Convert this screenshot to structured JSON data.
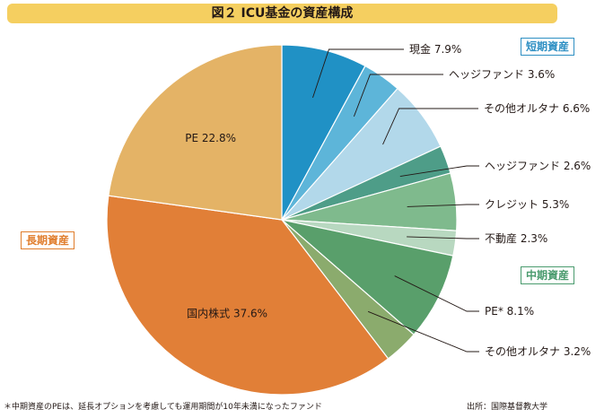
{
  "title": "図２ ICU基金の資産構成",
  "groups": {
    "short": {
      "label": "短期資産",
      "color": "#2e8fc3"
    },
    "mid": {
      "label": "中期資産",
      "color": "#4a9b6e"
    },
    "long": {
      "label": "長期資産",
      "color": "#e07d2c"
    }
  },
  "footnote": "＊中期資産のPEは、延長オプションを考慮しても運用期間が10年未満になったファンド",
  "source": "出所：国際基督教大学",
  "chart_data": {
    "type": "pie",
    "start": "top",
    "direction": "clockwise",
    "slices": [
      {
        "label": "現金",
        "value": 7.9,
        "value_text": "7.9%",
        "group": "short",
        "color": "#2091c5"
      },
      {
        "label": "ヘッジファンド",
        "value": 3.6,
        "value_text": "3.6%",
        "group": "short",
        "color": "#5db5d9"
      },
      {
        "label": "その他オルタナ",
        "value": 6.6,
        "value_text": "6.6%",
        "group": "short",
        "color": "#b2d8ea"
      },
      {
        "label": "ヘッジファンド",
        "value": 2.6,
        "value_text": "2.6%",
        "group": "mid",
        "color": "#4e9d88"
      },
      {
        "label": "クレジット",
        "value": 5.3,
        "value_text": "5.3%",
        "group": "mid",
        "color": "#7fba8d"
      },
      {
        "label": "不動産",
        "value": 2.3,
        "value_text": "2.3%",
        "group": "mid",
        "color": "#b8d8c0"
      },
      {
        "label": "PE*",
        "value": 8.1,
        "value_text": "8.1%",
        "group": "mid",
        "color": "#599f6b"
      },
      {
        "label": "その他オルタナ",
        "value": 3.2,
        "value_text": "3.2%",
        "group": "mid",
        "color": "#8bab6d"
      },
      {
        "label": "国内株式",
        "value": 37.6,
        "value_text": "37.6%",
        "group": "long",
        "color": "#e17f37"
      },
      {
        "label": "PE",
        "value": 22.8,
        "value_text": "22.8%",
        "group": "long",
        "color": "#e4b366"
      }
    ]
  }
}
